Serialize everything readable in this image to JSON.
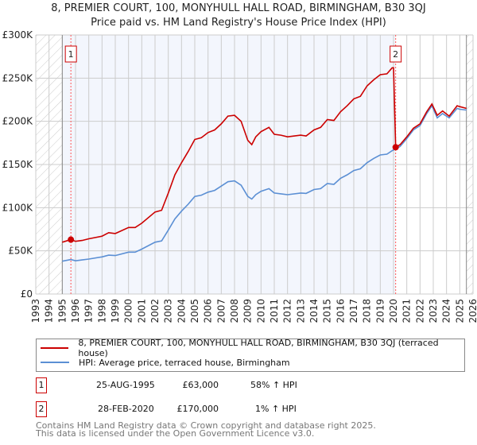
{
  "title_line1": "8, PREMIER COURT, 100, MONYHULL HALL ROAD, BIRMINGHAM, B30 3QJ",
  "title_line2": "Price paid vs. HM Land Registry's House Price Index (HPI)",
  "colors": {
    "property": "#cc0000",
    "hpi": "#5b8fd4",
    "shade": "#f3f6fd"
  },
  "chart_data": {
    "type": "line",
    "xlim": [
      1993,
      2026
    ],
    "ylim": [
      0,
      300000
    ],
    "yticks": [
      0,
      50000,
      100000,
      150000,
      200000,
      250000,
      300000
    ],
    "ytick_labels": [
      "£0",
      "£50K",
      "£100K",
      "£150K",
      "£200K",
      "£250K",
      "£300K"
    ],
    "xticks": [
      "1993",
      "1994",
      "1995",
      "1996",
      "1997",
      "1998",
      "1999",
      "2000",
      "2001",
      "2002",
      "2003",
      "2004",
      "2005",
      "2006",
      "2007",
      "2008",
      "2009",
      "2010",
      "2011",
      "2012",
      "2013",
      "2014",
      "2015",
      "2016",
      "2017",
      "2018",
      "2019",
      "2020",
      "2021",
      "2022",
      "2023",
      "2024",
      "2025",
      "2026"
    ],
    "grid": true,
    "shaded_range": [
      1995.0,
      2020.16
    ],
    "series": [
      {
        "name": "8, PREMIER COURT, 100, MONYHULL HALL ROAD, BIRMINGHAM, B30 3QJ (terraced house)",
        "x": [
          1995.0,
          1995.65,
          1996.0,
          1996.5,
          1997.0,
          1998.0,
          1998.5,
          1999.0,
          2000.0,
          2000.5,
          2001.0,
          2002.0,
          2002.5,
          2003.0,
          2003.5,
          2004.0,
          2004.5,
          2005.0,
          2005.5,
          2006.0,
          2006.5,
          2007.0,
          2007.5,
          2008.0,
          2008.5,
          2009.0,
          2009.3,
          2009.6,
          2010.0,
          2010.6,
          2011.0,
          2011.5,
          2012.0,
          2013.0,
          2013.4,
          2014.0,
          2014.5,
          2015.0,
          2015.5,
          2016.0,
          2016.5,
          2017.0,
          2017.5,
          2018.0,
          2018.5,
          2019.0,
          2019.5,
          2019.9,
          2020.0,
          2020.16,
          2020.5,
          2021.0,
          2021.5,
          2022.0,
          2022.5,
          2022.9,
          2023.3,
          2023.7,
          2024.2,
          2024.8,
          2025.0,
          2025.5
        ],
        "values": [
          60000,
          63000,
          61000,
          62000,
          64000,
          67000,
          71000,
          70000,
          77000,
          77000,
          82000,
          95000,
          97000,
          117000,
          138000,
          152000,
          165000,
          179000,
          181000,
          187000,
          190000,
          197000,
          206000,
          207000,
          200000,
          178000,
          173000,
          182000,
          188000,
          193000,
          185000,
          184000,
          182000,
          184000,
          183000,
          190000,
          193000,
          202000,
          201000,
          211000,
          218000,
          226000,
          229000,
          241000,
          248000,
          254000,
          255000,
          262000,
          262000,
          170000,
          173000,
          182000,
          192000,
          197000,
          211000,
          220000,
          207000,
          212000,
          206000,
          218000,
          217000,
          215000
        ]
      },
      {
        "name": "HPI: Average price, terraced house, Birmingham",
        "x": [
          1995.0,
          1995.65,
          1996.0,
          1996.5,
          1997.0,
          1998.0,
          1998.5,
          1999.0,
          2000.0,
          2000.5,
          2001.0,
          2002.0,
          2002.5,
          2003.0,
          2003.5,
          2004.0,
          2004.5,
          2005.0,
          2005.5,
          2006.0,
          2006.5,
          2007.0,
          2007.5,
          2008.0,
          2008.5,
          2009.0,
          2009.3,
          2009.6,
          2010.0,
          2010.6,
          2011.0,
          2011.5,
          2012.0,
          2013.0,
          2013.4,
          2014.0,
          2014.5,
          2015.0,
          2015.5,
          2016.0,
          2016.5,
          2017.0,
          2017.5,
          2018.0,
          2018.5,
          2019.0,
          2019.5,
          2019.9,
          2020.16,
          2020.5,
          2021.0,
          2021.5,
          2022.0,
          2022.5,
          2022.9,
          2023.3,
          2023.7,
          2024.2,
          2024.8,
          2025.0,
          2025.5
        ],
        "values": [
          38000,
          39900,
          38500,
          39500,
          40500,
          43000,
          45000,
          44500,
          48500,
          48500,
          52000,
          60000,
          61500,
          74000,
          87000,
          96000,
          104000,
          113000,
          114500,
          118000,
          120000,
          125000,
          130000,
          131000,
          126000,
          113000,
          110000,
          115000,
          119000,
          122000,
          117000,
          116000,
          115000,
          117000,
          116500,
          121000,
          122000,
          128000,
          127000,
          134000,
          138000,
          143000,
          145000,
          152000,
          157000,
          161000,
          162000,
          166000,
          168000,
          171000,
          180000,
          190000,
          195000,
          209000,
          218000,
          204000,
          209000,
          204000,
          215000,
          214000,
          213000
        ]
      }
    ],
    "sales": [
      {
        "label": "1",
        "x": 1995.65,
        "value": 63000
      },
      {
        "label": "2",
        "x": 2020.16,
        "value": 170000
      }
    ]
  },
  "legend": {
    "property": "8, PREMIER COURT, 100, MONYHULL HALL ROAD, BIRMINGHAM, B30 3QJ (terraced house)",
    "hpi": "HPI: Average price, terraced house, Birmingham"
  },
  "transactions": [
    {
      "num": "1",
      "date": "25-AUG-1995",
      "price": "£63,000",
      "hpi": "58% ↑ HPI"
    },
    {
      "num": "2",
      "date": "28-FEB-2020",
      "price": "£170,000",
      "hpi": "1% ↑ HPI"
    }
  ],
  "footer": {
    "line1": "Contains HM Land Registry data © Crown copyright and database right 2025.",
    "line2": "This data is licensed under the Open Government Licence v3.0."
  }
}
